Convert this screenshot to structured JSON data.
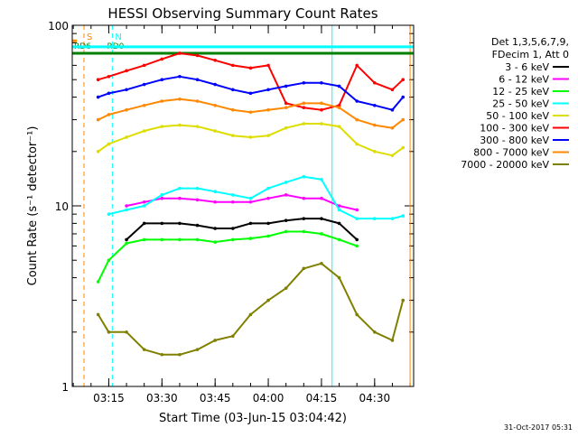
{
  "chart_data": {
    "type": "line",
    "title": "HESSI Observing Summary Count Rates",
    "xlabel": "Start Time (03-Jun-15 03:04:42)",
    "ylabel": "Count Rate (s⁻¹ detector⁻¹)",
    "yscale": "log",
    "ylim": [
      1,
      100
    ],
    "xlim": [
      "03:04:42",
      "04:41:00"
    ],
    "x_ticks": [
      "03:15",
      "03:30",
      "03:45",
      "04:00",
      "04:15",
      "04:30"
    ],
    "y_ticks": [
      "1",
      "10",
      "100"
    ],
    "legend_header": [
      "Det 1,3,5,6,7,9,",
      "FDecim 1, Att 0"
    ],
    "legend_position": "right",
    "timestamp": "31-Oct-2017 05:31",
    "x": [
      "03:08",
      "03:12",
      "03:15",
      "03:20",
      "03:25",
      "03:30",
      "03:35",
      "03:40",
      "03:45",
      "03:50",
      "03:55",
      "04:00",
      "04:05",
      "04:10",
      "04:15",
      "04:20",
      "04:25",
      "04:30",
      "04:35",
      "04:38"
    ],
    "series": [
      {
        "name": "3 - 6 keV",
        "color": "#000000",
        "values": [
          null,
          null,
          null,
          6.5,
          8.0,
          8.0,
          8.0,
          7.8,
          7.5,
          7.5,
          8.0,
          8.0,
          8.3,
          8.5,
          8.5,
          8.0,
          6.5,
          null,
          null,
          null
        ]
      },
      {
        "name": "6 - 12 keV",
        "color": "#ff00ff",
        "values": [
          null,
          null,
          null,
          10.0,
          10.5,
          11.0,
          11.0,
          10.8,
          10.5,
          10.5,
          10.5,
          11.0,
          11.5,
          11.0,
          11.0,
          10.0,
          9.5,
          null,
          null,
          null
        ]
      },
      {
        "name": "12 - 25 keV",
        "color": "#00ff00",
        "values": [
          null,
          3.8,
          5.0,
          6.2,
          6.5,
          6.5,
          6.5,
          6.5,
          6.3,
          6.5,
          6.6,
          6.8,
          7.2,
          7.2,
          7.0,
          6.5,
          6.0,
          null,
          null,
          null
        ]
      },
      {
        "name": "25 - 50 keV",
        "color": "#00ffff",
        "values": [
          null,
          null,
          9.0,
          9.5,
          10.0,
          11.5,
          12.5,
          12.5,
          12.0,
          11.5,
          11.0,
          12.5,
          13.5,
          14.5,
          14.0,
          9.5,
          8.5,
          8.5,
          8.5,
          8.8
        ]
      },
      {
        "name": "50 - 100 keV",
        "color": "#dddd00",
        "values": [
          null,
          20.0,
          22.0,
          24.0,
          26.0,
          27.5,
          28.0,
          27.5,
          26.0,
          24.5,
          24.0,
          24.5,
          27.0,
          28.5,
          28.5,
          27.5,
          22.0,
          20.0,
          19.0,
          21.0
        ]
      },
      {
        "name": "100 - 300 keV",
        "color": "#ff0000",
        "values": [
          null,
          50.0,
          52.0,
          56.0,
          60.0,
          65.0,
          70.0,
          68.0,
          64.0,
          60.0,
          58.0,
          60.0,
          37.0,
          35.0,
          34.0,
          36.0,
          60.0,
          48.0,
          44.0,
          50.0
        ]
      },
      {
        "name": "300 - 800 keV",
        "color": "#0000ff",
        "values": [
          null,
          40.0,
          42.0,
          44.0,
          47.0,
          50.0,
          52.0,
          50.0,
          47.0,
          44.0,
          42.0,
          44.0,
          46.0,
          48.0,
          48.0,
          46.0,
          38.0,
          36.0,
          34.0,
          40.0
        ]
      },
      {
        "name": "800 - 7000 keV",
        "color": "#ff8800",
        "values": [
          null,
          30.0,
          32.0,
          34.0,
          36.0,
          38.0,
          39.0,
          38.0,
          36.0,
          34.0,
          33.0,
          34.0,
          35.0,
          37.0,
          37.0,
          35.0,
          30.0,
          28.0,
          27.0,
          30.0
        ]
      },
      {
        "name": "7000 - 20000 keV",
        "color": "#808000",
        "values": [
          null,
          2.5,
          2.0,
          2.0,
          1.6,
          1.5,
          1.5,
          1.6,
          1.8,
          1.9,
          2.5,
          3.0,
          3.5,
          4.5,
          4.8,
          4.0,
          2.5,
          2.0,
          1.8,
          3.0
        ]
      }
    ],
    "markers": [
      {
        "label": "S",
        "color": "#ff8800",
        "x": "03:08",
        "style": "dashed"
      },
      {
        "label": "N",
        "color": "#00ffff",
        "x": "03:16",
        "style": "dashed"
      },
      {
        "label": "",
        "color": "#00ffff",
        "x": "04:18",
        "style": "solid"
      },
      {
        "label": "",
        "color": "#ff8800",
        "x": "04:40",
        "style": "solid"
      }
    ],
    "flag_bars": [
      {
        "label": "RD6",
        "color": "#008000",
        "x_start": "03:04:42",
        "x_end": "04:41:00",
        "level": 70
      },
      {
        "label": "RD0",
        "color": "#008000",
        "x_start": "03:14",
        "x_end": "03:18",
        "level": 70
      },
      {
        "label": "",
        "color": "#00ffff",
        "x_start": "03:04:42",
        "x_end": "04:41:00",
        "level": 76
      },
      {
        "label": "",
        "color": "#ff8800",
        "x_start": "03:04:42",
        "x_end": "03:06",
        "level": 82
      }
    ]
  }
}
